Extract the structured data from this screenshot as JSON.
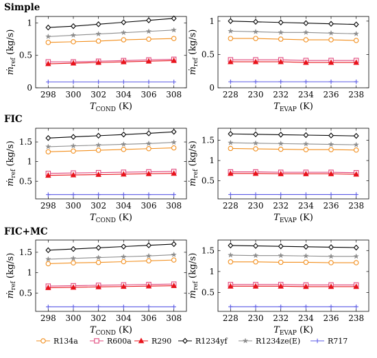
{
  "figure": {
    "legend_position": "bottom",
    "colors": {
      "R134a": "#f28e1c",
      "R600a": "#e0457b",
      "R290": "#e8141c",
      "R1234yf": "#000000",
      "R1234ze(E)": "#8c8c8c",
      "R717": "#5a5ae6"
    },
    "markers": {
      "R134a": "circle",
      "R600a": "square",
      "R290": "triangle",
      "R1234yf": "diamond",
      "R1234ze(E)": "star",
      "R717": "plus"
    }
  },
  "groups": [
    {
      "title": "Simple"
    },
    {
      "title": "FIC"
    },
    {
      "title": "FIC+MC"
    }
  ],
  "legend": [
    "R134a",
    "R600a",
    "R290",
    "R1234yf",
    "R1234ze(E)",
    "R717"
  ],
  "chart_data": [
    {
      "type": "line",
      "group": "Simple",
      "xlabel": {
        "main": "T",
        "sub": "COND",
        "unit": " (K)"
      },
      "ylabel": {
        "main": "ṁ",
        "sub": "ref",
        "unit": " (kg/s)"
      },
      "x": [
        298,
        300,
        302,
        304,
        306,
        308
      ],
      "xlim": [
        297,
        309
      ],
      "ylim": [
        0,
        1.1
      ],
      "yticks": [
        0,
        0.5,
        1
      ],
      "ytick_labels": [
        "0",
        "0.5",
        "1"
      ],
      "grid": false,
      "series": [
        {
          "name": "R134a",
          "values": [
            0.7,
            0.71,
            0.72,
            0.74,
            0.75,
            0.76
          ]
        },
        {
          "name": "R600a",
          "values": [
            0.4,
            0.4,
            0.41,
            0.42,
            0.43,
            0.44
          ]
        },
        {
          "name": "R290",
          "values": [
            0.37,
            0.38,
            0.39,
            0.4,
            0.41,
            0.42
          ]
        },
        {
          "name": "R1234yf",
          "values": [
            0.93,
            0.95,
            0.98,
            1.01,
            1.04,
            1.07
          ]
        },
        {
          "name": "R1234ze(E)",
          "values": [
            0.79,
            0.81,
            0.83,
            0.85,
            0.87,
            0.89
          ]
        },
        {
          "name": "R717",
          "values": [
            0.09,
            0.09,
            0.09,
            0.09,
            0.09,
            0.09
          ]
        }
      ]
    },
    {
      "type": "line",
      "group": "Simple",
      "xlabel": {
        "main": "T",
        "sub": "EVAP",
        "unit": " (K)"
      },
      "ylabel": {
        "main": "ṁ",
        "sub": "ref",
        "unit": " (kg/s)"
      },
      "x": [
        228,
        230,
        232,
        234,
        236,
        238
      ],
      "xlim": [
        227,
        239
      ],
      "ylim": [
        0,
        1.07
      ],
      "yticks": [
        0,
        0.5,
        1
      ],
      "ytick_labels": [
        "0",
        "0.5",
        "1"
      ],
      "grid": false,
      "series": [
        {
          "name": "R134a",
          "values": [
            0.74,
            0.74,
            0.73,
            0.72,
            0.72,
            0.71
          ]
        },
        {
          "name": "R600a",
          "values": [
            0.42,
            0.42,
            0.42,
            0.41,
            0.41,
            0.41
          ]
        },
        {
          "name": "R290",
          "values": [
            0.39,
            0.39,
            0.39,
            0.38,
            0.38,
            0.38
          ]
        },
        {
          "name": "R1234yf",
          "values": [
            1.0,
            0.99,
            0.98,
            0.97,
            0.96,
            0.95
          ]
        },
        {
          "name": "R1234ze(E)",
          "values": [
            0.85,
            0.84,
            0.83,
            0.83,
            0.82,
            0.81
          ]
        },
        {
          "name": "R717",
          "values": [
            0.09,
            0.09,
            0.09,
            0.09,
            0.09,
            0.09
          ]
        }
      ]
    },
    {
      "type": "line",
      "group": "FIC",
      "xlabel": {
        "main": "T",
        "sub": "COND",
        "unit": " (K)"
      },
      "ylabel": {
        "main": "ṁ",
        "sub": "ref",
        "unit": " (kg/s)"
      },
      "x": [
        298,
        300,
        302,
        304,
        306,
        308
      ],
      "xlim": [
        297,
        309
      ],
      "ylim": [
        0.05,
        1.85
      ],
      "yticks": [
        0.5,
        1,
        1.5
      ],
      "ytick_labels": [
        "0.5",
        "1",
        "1.5"
      ],
      "grid": false,
      "series": [
        {
          "name": "R134a",
          "values": [
            1.25,
            1.27,
            1.29,
            1.31,
            1.33,
            1.35
          ]
        },
        {
          "name": "R600a",
          "values": [
            0.7,
            0.71,
            0.72,
            0.73,
            0.74,
            0.75
          ]
        },
        {
          "name": "R290",
          "values": [
            0.65,
            0.66,
            0.67,
            0.68,
            0.69,
            0.7
          ]
        },
        {
          "name": "R1234yf",
          "values": [
            1.6,
            1.63,
            1.66,
            1.69,
            1.72,
            1.76
          ]
        },
        {
          "name": "R1234ze(E)",
          "values": [
            1.38,
            1.4,
            1.42,
            1.44,
            1.46,
            1.49
          ]
        },
        {
          "name": "R717",
          "values": [
            0.16,
            0.16,
            0.16,
            0.16,
            0.16,
            0.16
          ]
        }
      ]
    },
    {
      "type": "line",
      "group": "FIC",
      "xlabel": {
        "main": "T",
        "sub": "EVAP",
        "unit": " (K)"
      },
      "ylabel": {
        "main": "ṁ",
        "sub": "ref",
        "unit": " (kg/s)"
      },
      "x": [
        228,
        230,
        232,
        234,
        236,
        238
      ],
      "xlim": [
        227,
        239
      ],
      "ylim": [
        0.05,
        1.8
      ],
      "yticks": [
        0.5,
        1,
        1.5
      ],
      "ytick_labels": [
        "0.5",
        "1",
        "1.5"
      ],
      "grid": false,
      "series": [
        {
          "name": "R134a",
          "values": [
            1.3,
            1.29,
            1.28,
            1.27,
            1.27,
            1.26
          ]
        },
        {
          "name": "R600a",
          "values": [
            0.72,
            0.72,
            0.71,
            0.71,
            0.71,
            0.7
          ]
        },
        {
          "name": "R290",
          "values": [
            0.68,
            0.68,
            0.67,
            0.67,
            0.67,
            0.66
          ]
        },
        {
          "name": "R1234yf",
          "values": [
            1.66,
            1.65,
            1.64,
            1.63,
            1.62,
            1.61
          ]
        },
        {
          "name": "R1234ze(E)",
          "values": [
            1.44,
            1.43,
            1.42,
            1.41,
            1.4,
            1.39
          ]
        },
        {
          "name": "R717",
          "values": [
            0.16,
            0.16,
            0.16,
            0.16,
            0.16,
            0.16
          ]
        }
      ]
    },
    {
      "type": "line",
      "group": "FIC+MC",
      "xlabel": {
        "main": "T",
        "sub": "COND",
        "unit": " (K)"
      },
      "ylabel": {
        "main": "ṁ",
        "sub": "ref",
        "unit": " (kg/s)"
      },
      "x": [
        298,
        300,
        302,
        304,
        306,
        308
      ],
      "xlim": [
        297,
        309
      ],
      "ylim": [
        0.05,
        1.8
      ],
      "yticks": [
        0.5,
        1,
        1.5
      ],
      "ytick_labels": [
        "0.5",
        "1",
        "1.5"
      ],
      "grid": false,
      "series": [
        {
          "name": "R134a",
          "values": [
            1.22,
            1.24,
            1.25,
            1.27,
            1.29,
            1.31
          ]
        },
        {
          "name": "R600a",
          "values": [
            0.67,
            0.68,
            0.69,
            0.7,
            0.71,
            0.72
          ]
        },
        {
          "name": "R290",
          "values": [
            0.63,
            0.64,
            0.65,
            0.66,
            0.67,
            0.68
          ]
        },
        {
          "name": "R1234yf",
          "values": [
            1.55,
            1.58,
            1.61,
            1.64,
            1.67,
            1.7
          ]
        },
        {
          "name": "R1234ze(E)",
          "values": [
            1.33,
            1.35,
            1.37,
            1.39,
            1.41,
            1.44
          ]
        },
        {
          "name": "R717",
          "values": [
            0.16,
            0.16,
            0.16,
            0.16,
            0.16,
            0.16
          ]
        }
      ]
    },
    {
      "type": "line",
      "group": "FIC+MC",
      "xlabel": {
        "main": "T",
        "sub": "EVAP",
        "unit": " (K)"
      },
      "ylabel": {
        "main": "ṁ",
        "sub": "ref",
        "unit": " (kg/s)"
      },
      "x": [
        228,
        230,
        232,
        234,
        236,
        238
      ],
      "xlim": [
        227,
        239
      ],
      "ylim": [
        0.05,
        1.75
      ],
      "yticks": [
        0.5,
        1,
        1.5
      ],
      "ytick_labels": [
        "0.5",
        "1",
        "1.5"
      ],
      "grid": false,
      "series": [
        {
          "name": "R134a",
          "values": [
            1.23,
            1.23,
            1.22,
            1.22,
            1.21,
            1.21
          ]
        },
        {
          "name": "R600a",
          "values": [
            0.69,
            0.69,
            0.69,
            0.68,
            0.68,
            0.68
          ]
        },
        {
          "name": "R290",
          "values": [
            0.65,
            0.65,
            0.65,
            0.64,
            0.64,
            0.64
          ]
        },
        {
          "name": "R1234yf",
          "values": [
            1.62,
            1.61,
            1.6,
            1.59,
            1.58,
            1.57
          ]
        },
        {
          "name": "R1234ze(E)",
          "values": [
            1.39,
            1.38,
            1.38,
            1.37,
            1.36,
            1.36
          ]
        },
        {
          "name": "R717",
          "values": [
            0.16,
            0.16,
            0.16,
            0.16,
            0.16,
            0.16
          ]
        }
      ]
    }
  ]
}
